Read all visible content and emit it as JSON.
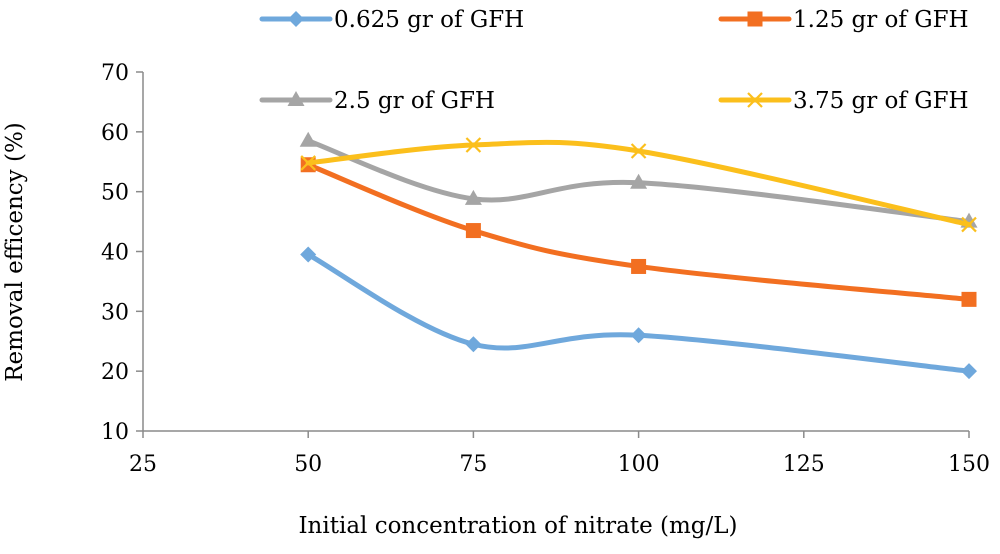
{
  "chart_data": {
    "type": "line",
    "xlabel": "Initial concentration of nitrate (mg/L)",
    "ylabel": "Removal efficency (%)",
    "xlim": [
      25,
      150
    ],
    "ylim": [
      10,
      70
    ],
    "xticks": [
      25,
      50,
      75,
      100,
      125,
      150
    ],
    "yticks": [
      10,
      20,
      30,
      40,
      50,
      60,
      70
    ],
    "grid": false,
    "legend_position": "top",
    "x": [
      50,
      75,
      100,
      150
    ],
    "series": [
      {
        "name": "0.625 gr of GFH",
        "color": "#6fa8dc",
        "marker": "diamond",
        "values": [
          39.5,
          24.5,
          26,
          20
        ]
      },
      {
        "name": "1.25 gr of GFH",
        "color": "#f26f21",
        "marker": "square",
        "values": [
          54.5,
          43.5,
          37.5,
          32
        ]
      },
      {
        "name": "2.5 gr of GFH",
        "color": "#a5a5a5",
        "marker": "triangle",
        "values": [
          58.5,
          48.8,
          51.5,
          45
        ]
      },
      {
        "name": "3.75 gr of GFH",
        "color": "#fbbf1c",
        "marker": "x",
        "values": [
          54.8,
          57.8,
          56.8,
          44.5
        ]
      }
    ]
  }
}
